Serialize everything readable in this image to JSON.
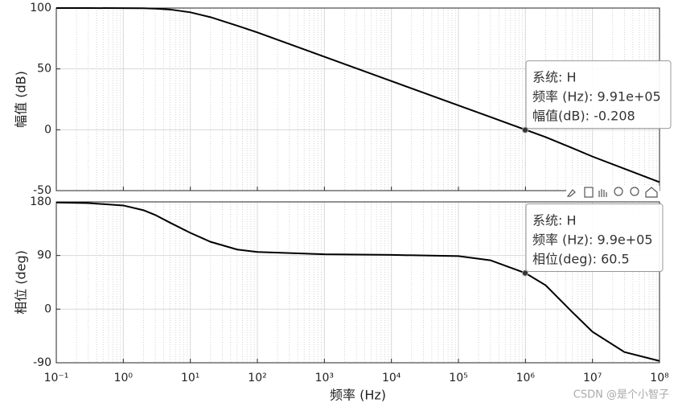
{
  "chart_data": [
    {
      "type": "line",
      "ylabel": "幅值 (dB)",
      "xscale": "log",
      "grid": true,
      "minor_grid": true,
      "color": "#000000",
      "x": [
        0.1,
        0.3,
        1,
        2,
        3,
        5,
        10,
        20,
        50,
        100,
        1000,
        10000,
        100000,
        300000,
        1000000,
        2000000,
        5000000,
        10000000,
        30000000,
        100000000
      ],
      "values": [
        100,
        100,
        99.9,
        99.8,
        99.5,
        98.8,
        96.5,
        92.5,
        85.5,
        80,
        60,
        40,
        20,
        10.5,
        0,
        -6,
        -15,
        -22,
        -32,
        -43
      ],
      "xlim": [
        0.1,
        100000000
      ],
      "xticks": [
        0.1,
        1,
        10,
        100,
        1000,
        10000,
        100000,
        1000000,
        10000000,
        100000000
      ],
      "xticklabels": false,
      "ylim": [
        -50,
        100
      ],
      "yticks": [
        -50,
        0,
        50,
        100
      ],
      "datatip": {
        "x": 991000,
        "y": -0.208,
        "lines": [
          "系统: H",
          "频率 (Hz): 9.91e+05",
          "幅值(dB): -0.208"
        ]
      }
    },
    {
      "type": "line",
      "ylabel": "相位 (deg)",
      "xlabel": "频率  (Hz)",
      "xscale": "log",
      "grid": true,
      "minor_grid": true,
      "color": "#000000",
      "x": [
        0.1,
        0.3,
        1,
        2,
        3,
        5,
        10,
        20,
        50,
        100,
        1000,
        10000,
        100000,
        300000,
        1000000,
        2000000,
        5000000,
        10000000,
        30000000,
        100000000
      ],
      "values": [
        179,
        178,
        174,
        166,
        158,
        145,
        128,
        113,
        100,
        96,
        92,
        91,
        89,
        82,
        60.5,
        40,
        -5,
        -38,
        -72,
        -87
      ],
      "xlim": [
        0.1,
        100000000
      ],
      "xticks": [
        {
          "value": 0.1,
          "label": "10⁻¹"
        },
        {
          "value": 1,
          "label": "10⁰"
        },
        {
          "value": 10,
          "label": "10¹"
        },
        {
          "value": 100,
          "label": "10²"
        },
        {
          "value": 1000,
          "label": "10³"
        },
        {
          "value": 10000,
          "label": "10⁴"
        },
        {
          "value": 100000,
          "label": "10⁵"
        },
        {
          "value": 1000000,
          "label": "10⁶"
        },
        {
          "value": 10000000,
          "label": "10⁷"
        },
        {
          "value": 100000000,
          "label": "10⁸"
        }
      ],
      "xticklabels": true,
      "ylim": [
        -90,
        180
      ],
      "yticks": [
        -90,
        0,
        90,
        180
      ],
      "datatip": {
        "x": 990000,
        "y": 60.5,
        "lines": [
          "系统: H",
          "频率 (Hz): 9.9e+05",
          "相位(deg): 60.5"
        ]
      }
    }
  ],
  "watermark": "CSDN @是个小智子"
}
